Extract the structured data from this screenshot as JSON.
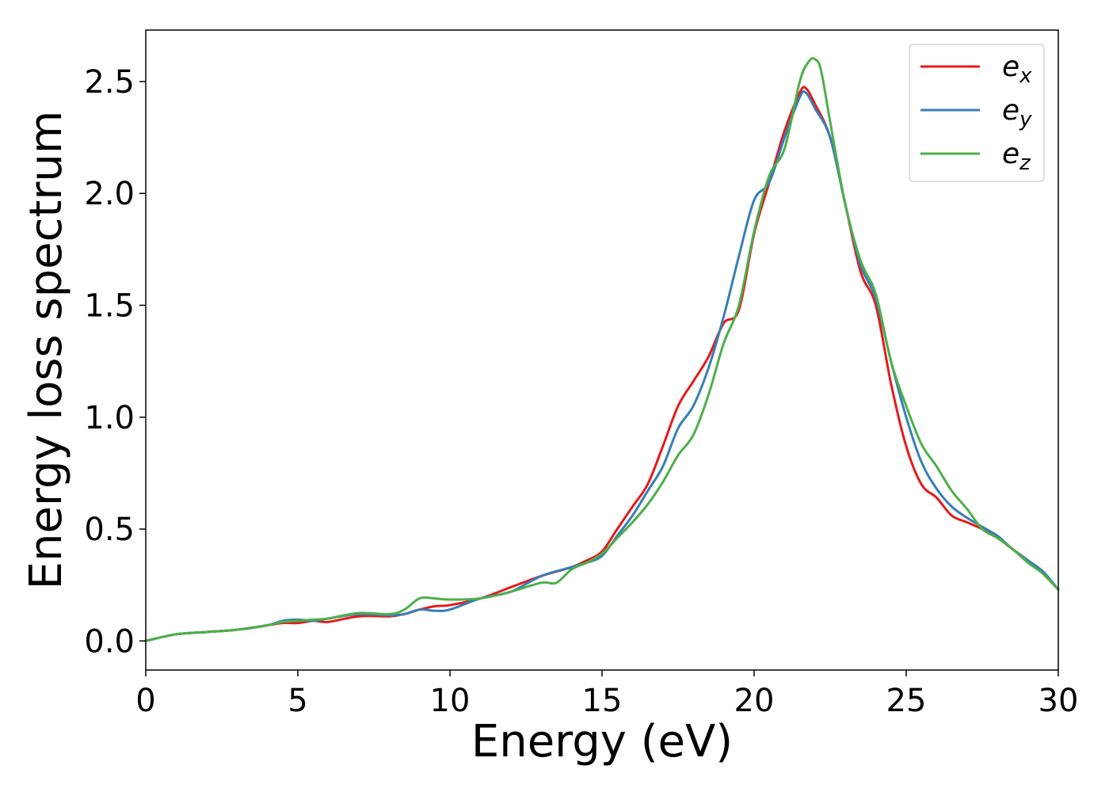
{
  "chart_data": {
    "type": "line",
    "title": "",
    "xlabel": "Energy (eV)",
    "ylabel": "Energy loss spectrum",
    "xlim": [
      0,
      30
    ],
    "ylim": [
      -0.13,
      2.73
    ],
    "xticks": [
      0,
      5,
      10,
      15,
      20,
      25,
      30
    ],
    "xtick_labels": [
      "0",
      "5",
      "10",
      "15",
      "20",
      "25",
      "30"
    ],
    "yticks": [
      0.0,
      0.5,
      1.0,
      1.5,
      2.0,
      2.5
    ],
    "ytick_labels": [
      "0.0",
      "0.5",
      "1.0",
      "1.5",
      "2.0",
      "2.5"
    ],
    "grid": false,
    "legend_position": "top-right",
    "series": [
      {
        "name": "e_x",
        "label_main": "e",
        "label_sub": "x",
        "color": "#e41a1c",
        "x": [
          0,
          1,
          2,
          3,
          4,
          4.5,
          5,
          5.5,
          6,
          7,
          8,
          8.5,
          9,
          9.5,
          10,
          11,
          12,
          13,
          14,
          14.5,
          15,
          15.5,
          16,
          16.5,
          17,
          17.5,
          18,
          18.5,
          19,
          19.5,
          20,
          20.5,
          21,
          21.5,
          21.7,
          22,
          22.5,
          23,
          23.5,
          24,
          24.5,
          25,
          25.5,
          26,
          26.5,
          27,
          27.5,
          28,
          28.5,
          29,
          29.5,
          30
        ],
        "y": [
          0.0,
          0.03,
          0.04,
          0.05,
          0.07,
          0.08,
          0.08,
          0.09,
          0.085,
          0.11,
          0.11,
          0.12,
          0.14,
          0.155,
          0.16,
          0.19,
          0.24,
          0.29,
          0.33,
          0.36,
          0.4,
          0.5,
          0.6,
          0.7,
          0.87,
          1.05,
          1.16,
          1.27,
          1.42,
          1.48,
          1.82,
          2.05,
          2.28,
          2.45,
          2.47,
          2.4,
          2.25,
          1.95,
          1.65,
          1.5,
          1.15,
          0.87,
          0.7,
          0.64,
          0.56,
          0.53,
          0.5,
          0.46,
          0.41,
          0.36,
          0.3,
          0.23
        ]
      },
      {
        "name": "e_y",
        "label_main": "e",
        "label_sub": "y",
        "color": "#377eb8",
        "x": [
          0,
          1,
          2,
          3,
          4,
          4.5,
          5,
          5.5,
          6,
          7,
          8,
          8.5,
          9,
          9.5,
          10,
          11,
          12,
          13,
          14,
          14.5,
          15,
          15.5,
          16,
          16.5,
          17,
          17.5,
          18,
          18.5,
          19,
          19.5,
          20,
          20.5,
          21,
          21.5,
          21.7,
          22,
          22.5,
          23,
          23.5,
          24,
          24.5,
          25,
          25.5,
          26,
          26.5,
          27,
          27.5,
          28,
          28.5,
          29,
          29.5,
          30
        ],
        "y": [
          0.0,
          0.03,
          0.04,
          0.05,
          0.07,
          0.09,
          0.095,
          0.09,
          0.1,
          0.12,
          0.115,
          0.12,
          0.14,
          0.135,
          0.14,
          0.19,
          0.22,
          0.29,
          0.33,
          0.35,
          0.38,
          0.47,
          0.56,
          0.67,
          0.78,
          0.95,
          1.05,
          1.22,
          1.45,
          1.72,
          1.97,
          2.05,
          2.25,
          2.43,
          2.45,
          2.38,
          2.25,
          1.95,
          1.68,
          1.53,
          1.25,
          1.0,
          0.8,
          0.68,
          0.6,
          0.55,
          0.51,
          0.47,
          0.41,
          0.36,
          0.31,
          0.23
        ]
      },
      {
        "name": "e_z",
        "label_main": "e",
        "label_sub": "z",
        "color": "#4daf4a",
        "x": [
          0,
          1,
          2,
          3,
          4,
          4.5,
          5,
          5.5,
          6,
          7,
          8,
          8.5,
          9,
          9.5,
          10,
          11,
          12,
          13,
          13.5,
          14,
          14.5,
          15,
          15.5,
          16,
          16.5,
          17,
          17.5,
          18,
          18.5,
          19,
          19.5,
          20,
          20.5,
          21,
          21.5,
          21.8,
          22,
          22.2,
          22.5,
          23,
          23.5,
          24,
          24.5,
          25,
          25.5,
          26,
          26.5,
          27,
          27.5,
          28,
          28.5,
          29,
          29.5,
          30
        ],
        "y": [
          0.0,
          0.03,
          0.04,
          0.05,
          0.07,
          0.085,
          0.09,
          0.095,
          0.1,
          0.125,
          0.12,
          0.14,
          0.19,
          0.19,
          0.185,
          0.19,
          0.22,
          0.26,
          0.26,
          0.32,
          0.35,
          0.39,
          0.46,
          0.53,
          0.61,
          0.71,
          0.83,
          0.92,
          1.1,
          1.33,
          1.5,
          1.83,
          2.08,
          2.2,
          2.5,
          2.59,
          2.6,
          2.55,
          2.32,
          1.95,
          1.7,
          1.55,
          1.25,
          1.05,
          0.88,
          0.78,
          0.67,
          0.59,
          0.5,
          0.46,
          0.41,
          0.35,
          0.3,
          0.23
        ]
      }
    ]
  }
}
